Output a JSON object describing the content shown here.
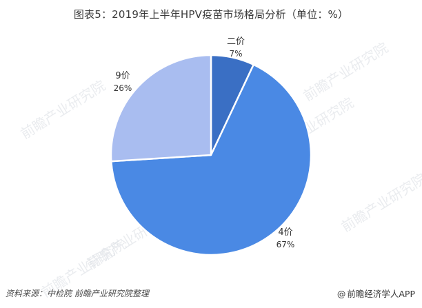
{
  "page": {
    "title": "图表5：2019年上半年HPV疫苗市场格局分析（单位：%）",
    "source": "资料来源：中检院 前瞻产业研究院整理",
    "brand_at": "@",
    "brand": "前瞻经济学人APP",
    "watermark": "前瞻产业研究院"
  },
  "chart_data": {
    "type": "pie",
    "title": "图表5：2019年上半年HPV疫苗市场格局分析（单位：%）",
    "slices": [
      {
        "label": "二价",
        "value": 7,
        "display": "7%",
        "color": "#3a6fc4"
      },
      {
        "label": "4价",
        "value": 67,
        "display": "67%",
        "color": "#4a89e4"
      },
      {
        "label": "9价",
        "value": 26,
        "display": "26%",
        "color": "#a9bdf0"
      }
    ],
    "start_angle": "12 o'clock",
    "direction": "clockwise"
  }
}
